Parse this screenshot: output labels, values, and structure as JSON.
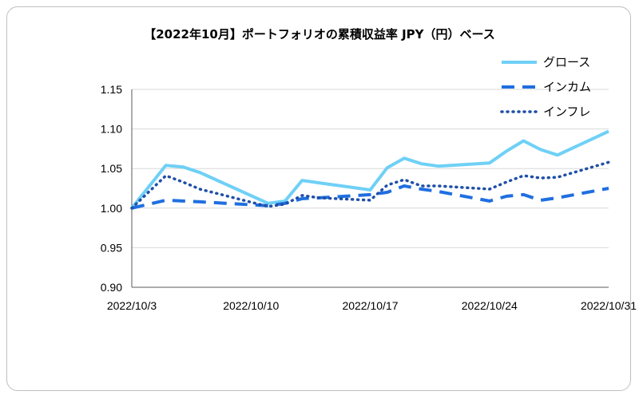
{
  "chart_data": {
    "type": "line",
    "title": "【2022年10月】ポートフォリオの累積収益率 JPY（円）ベース",
    "xlabel": "",
    "ylabel": "",
    "ylim": [
      0.9,
      1.15
    ],
    "yticks": [
      "0.90",
      "0.95",
      "1.00",
      "1.05",
      "1.10",
      "1.15"
    ],
    "xlim": [
      "2022-10-03",
      "2022-10-31"
    ],
    "xticks": [
      "2022/10/3",
      "2022/10/10",
      "2022/10/17",
      "2022/10/24",
      "2022/10/31"
    ],
    "grid": "horizontal",
    "legend_position": "top-right",
    "series": [
      {
        "name": "グロース",
        "color": "#6fd0f6",
        "style": "solid",
        "x": [
          "2022-10-03",
          "2022-10-05",
          "2022-10-06",
          "2022-10-07",
          "2022-10-11",
          "2022-10-12",
          "2022-10-13",
          "2022-10-14",
          "2022-10-17",
          "2022-10-18",
          "2022-10-19",
          "2022-10-20",
          "2022-10-21",
          "2022-10-24",
          "2022-10-25",
          "2022-10-26",
          "2022-10-27",
          "2022-10-28",
          "2022-10-31"
        ],
        "y": [
          1.0,
          1.054,
          1.052,
          1.045,
          1.006,
          1.009,
          1.035,
          1.032,
          1.023,
          1.051,
          1.063,
          1.056,
          1.053,
          1.057,
          1.072,
          1.085,
          1.074,
          1.067,
          1.097
        ]
      },
      {
        "name": "インカム",
        "color": "#1f6fe0",
        "style": "dashed",
        "x": [
          "2022-10-03",
          "2022-10-05",
          "2022-10-06",
          "2022-10-07",
          "2022-10-11",
          "2022-10-12",
          "2022-10-13",
          "2022-10-14",
          "2022-10-17",
          "2022-10-18",
          "2022-10-19",
          "2022-10-20",
          "2022-10-21",
          "2022-10-24",
          "2022-10-25",
          "2022-10-26",
          "2022-10-27",
          "2022-10-28",
          "2022-10-31"
        ],
        "y": [
          1.0,
          1.01,
          1.009,
          1.008,
          1.003,
          1.006,
          1.012,
          1.013,
          1.017,
          1.02,
          1.028,
          1.024,
          1.021,
          1.009,
          1.015,
          1.017,
          1.01,
          1.013,
          1.025
        ]
      },
      {
        "name": "インフレ",
        "color": "#1f4fa8",
        "style": "dotted",
        "x": [
          "2022-10-03",
          "2022-10-05",
          "2022-10-06",
          "2022-10-07",
          "2022-10-11",
          "2022-10-12",
          "2022-10-13",
          "2022-10-14",
          "2022-10-17",
          "2022-10-18",
          "2022-10-19",
          "2022-10-20",
          "2022-10-21",
          "2022-10-24",
          "2022-10-25",
          "2022-10-26",
          "2022-10-27",
          "2022-10-28",
          "2022-10-31"
        ],
        "y": [
          1.0,
          1.041,
          1.033,
          1.024,
          1.002,
          1.005,
          1.016,
          1.013,
          1.01,
          1.029,
          1.036,
          1.028,
          1.028,
          1.024,
          1.033,
          1.041,
          1.038,
          1.039,
          1.058
        ]
      }
    ]
  }
}
